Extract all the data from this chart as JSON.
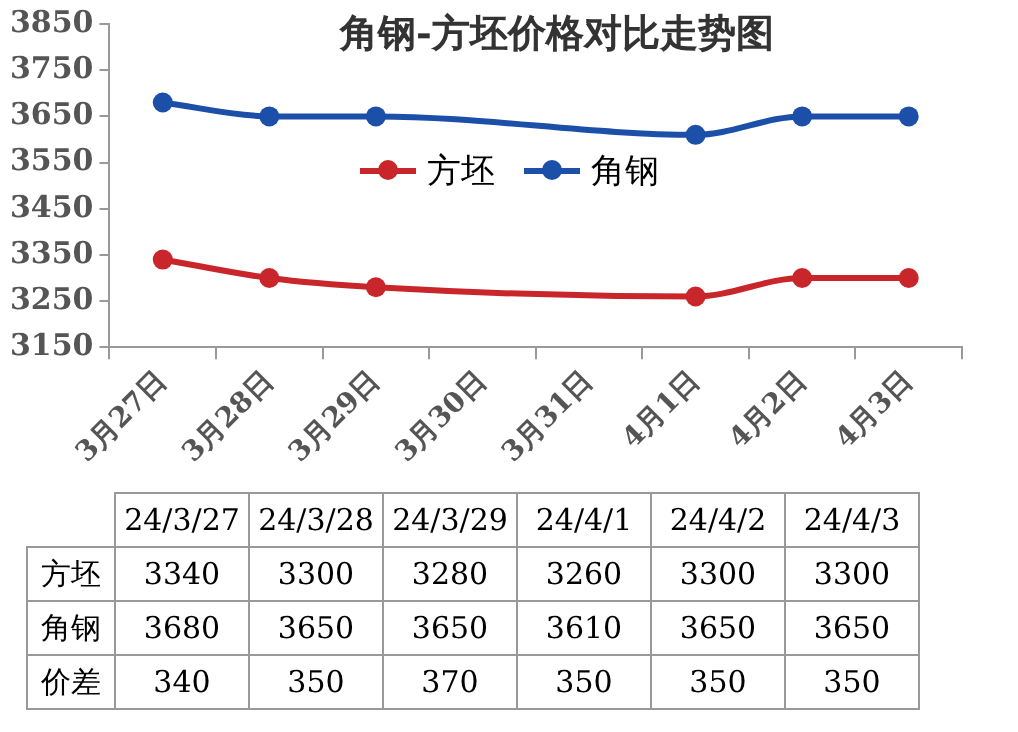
{
  "chart_data": {
    "type": "line",
    "title": "角钢-方坯价格对比走势图",
    "categories": [
      "3月27日",
      "3月28日",
      "3月29日",
      "3月30日",
      "3月31日",
      "4月1日",
      "4月2日",
      "4月3日"
    ],
    "series": [
      {
        "name": "方坯",
        "color": "#c8262a",
        "values": [
          3340,
          3300,
          3280,
          null,
          null,
          3260,
          3300,
          3300
        ]
      },
      {
        "name": "角钢",
        "color": "#1c4fa8",
        "values": [
          3680,
          3650,
          3650,
          null,
          null,
          3610,
          3650,
          3650
        ]
      }
    ],
    "ylim": [
      3150,
      3850
    ],
    "yticks": [
      3150,
      3250,
      3350,
      3450,
      3550,
      3650,
      3750,
      3850
    ],
    "grid": false,
    "legend": "top",
    "marker": "circle",
    "line_style": "solid",
    "annotations": [
      "24/3/27",
      "24/3/28",
      "24/3/29",
      "24/4/1",
      "24/4/2",
      "24/4/3",
      "3340",
      "3300",
      "3280",
      "3260",
      "3300",
      "3300",
      "3680",
      "3650",
      "3650",
      "3610",
      "3650",
      "3650",
      "价差",
      "340",
      "350",
      "370",
      "350",
      "350",
      "350"
    ]
  }
}
